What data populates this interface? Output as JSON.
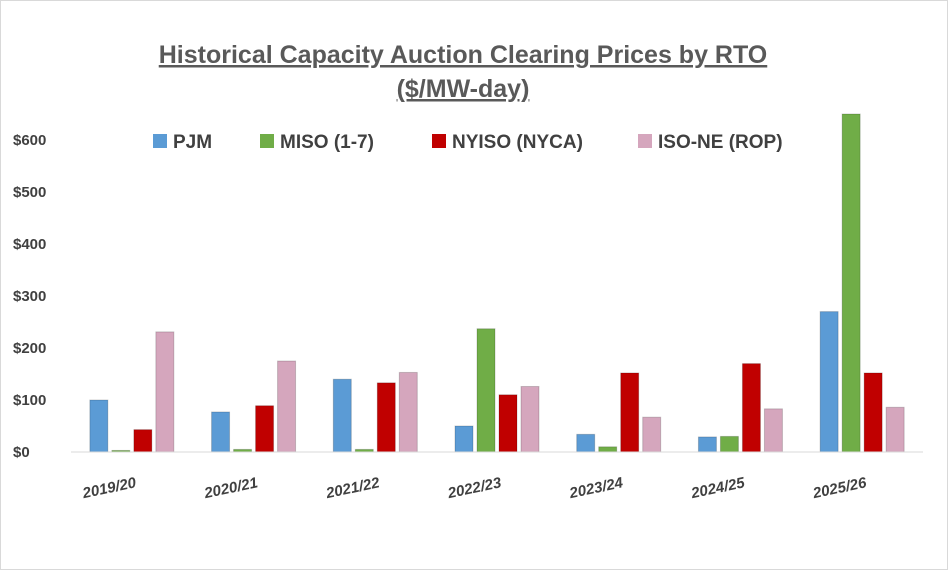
{
  "chart_data": {
    "type": "bar",
    "title_line1": "Historical Capacity Auction Clearing Prices by RTO",
    "title_line2": "($/MW-day)",
    "xlabel": "",
    "ylabel": "",
    "ylim": [
      0,
      650
    ],
    "yticks": [
      0,
      100,
      200,
      300,
      400,
      500,
      600
    ],
    "ytick_labels": [
      "$0",
      "$100",
      "$200",
      "$300",
      "$400",
      "$500",
      "$600"
    ],
    "grid": false,
    "legend_position": "top",
    "categories": [
      "2019/20",
      "2020/21",
      "2021/22",
      "2022/23",
      "2023/24",
      "2024/25",
      "2025/26"
    ],
    "series": [
      {
        "name": "PJM",
        "color": "#5b9bd5",
        "values": [
          100,
          77,
          140,
          50,
          34,
          29,
          270
        ]
      },
      {
        "name": "MISO (1-7)",
        "color": "#70ad47",
        "values": [
          3,
          5,
          5,
          237,
          10,
          30,
          650
        ]
      },
      {
        "name": "NYISO (NYCA)",
        "color": "#c00000",
        "values": [
          43,
          89,
          133,
          110,
          152,
          170,
          152
        ]
      },
      {
        "name": "ISO-NE (ROP)",
        "color": "#d5a6bd",
        "values": [
          231,
          175,
          153,
          126,
          67,
          83,
          86
        ]
      }
    ]
  }
}
